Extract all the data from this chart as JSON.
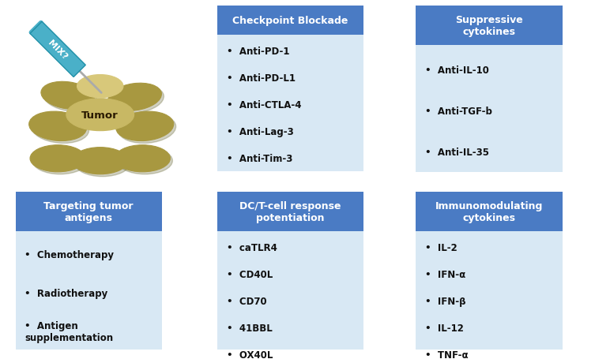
{
  "header_color": "#4A7BC4",
  "body_color": "#D8E8F4",
  "header_text_color": "#FFFFFF",
  "body_text_color": "#111111",
  "bullet": "•",
  "boxes": [
    {
      "title": "Checkpoint Blockade",
      "title_lines": 1,
      "items": [
        "Anti-PD-1",
        "Anti-PD-L1",
        "Anti-CTLA-4",
        "Anti-Lag-3",
        "Anti-Tim-3"
      ],
      "col": 1,
      "row": 0
    },
    {
      "title": "Suppressive\ncytokines",
      "title_lines": 2,
      "items": [
        "Anti-IL-10",
        "Anti-TGF-b",
        "Anti-IL-35"
      ],
      "col": 2,
      "row": 0
    },
    {
      "title": "Targeting tumor\nantigens",
      "title_lines": 2,
      "items": [
        "Chemotherapy",
        "Radiotherapy",
        "Antigen\nsupplementation"
      ],
      "col": 0,
      "row": 1
    },
    {
      "title": "DC/T-cell response\npotentiation",
      "title_lines": 2,
      "items": [
        "caTLR4",
        "CD40L",
        "CD70",
        "41BBL",
        "OX40L"
      ],
      "col": 1,
      "row": 1
    },
    {
      "title": "Immunomodulating\ncytokines",
      "title_lines": 2,
      "items": [
        "IL-2",
        "IFN-α",
        "IFN-β",
        "IL-12",
        "TNF-α"
      ],
      "col": 2,
      "row": 1
    }
  ],
  "tumor_label": "Tumor",
  "syringe_label": "MIX?",
  "fig_bg": "#FFFFFF",
  "syringe_color": "#4AB0C8",
  "needle_color": "#AAAAAA",
  "tumor_colors": {
    "main": "#C8B864",
    "shadow": "#A89840",
    "highlight": "#D8C87A"
  }
}
